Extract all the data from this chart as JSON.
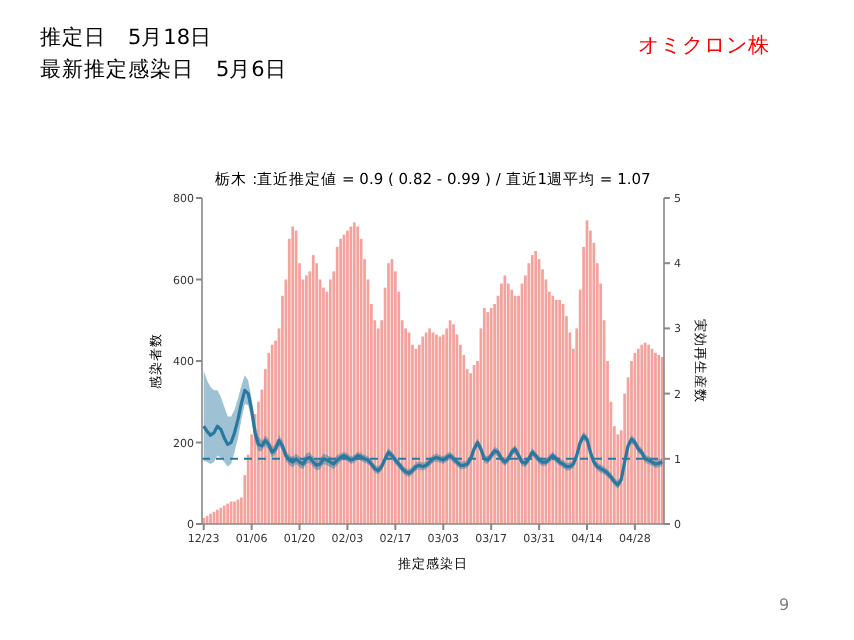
{
  "chart_data": {
    "type": "bar",
    "title": "栃木 :直近推定値 = 0.9 ( 0.82 - 0.99 ) / 直近1週平均 = 1.07",
    "xlabel": "推定感染日",
    "ylabel": "感染者数",
    "y2label": "実効再生産数",
    "annotations": [
      "推定日　5月18日",
      "最新推定感染日　5月6日",
      "オミクロン株",
      "9"
    ],
    "categories": [
      "12/23",
      null,
      null,
      null,
      null,
      null,
      null,
      null,
      null,
      null,
      null,
      null,
      null,
      null,
      "01/06",
      null,
      null,
      null,
      null,
      null,
      null,
      null,
      null,
      null,
      null,
      null,
      null,
      null,
      "01/20",
      null,
      null,
      null,
      null,
      null,
      null,
      null,
      null,
      null,
      null,
      null,
      null,
      null,
      "02/03",
      null,
      null,
      null,
      null,
      null,
      null,
      null,
      null,
      null,
      null,
      null,
      null,
      null,
      "02/17",
      null,
      null,
      null,
      null,
      null,
      null,
      null,
      null,
      null,
      null,
      null,
      null,
      null,
      "03/03",
      null,
      null,
      null,
      null,
      null,
      null,
      null,
      null,
      null,
      null,
      null,
      null,
      null,
      "03/17",
      null,
      null,
      null,
      null,
      null,
      null,
      null,
      null,
      null,
      null,
      null,
      null,
      null,
      "03/31",
      null,
      null,
      null,
      null,
      null,
      null,
      null,
      null,
      null,
      null,
      null,
      null,
      null,
      "04/14",
      null,
      null,
      null,
      null,
      null,
      null,
      null,
      null,
      null,
      null,
      null,
      null,
      null,
      "04/28",
      null,
      null,
      null,
      null,
      null,
      null,
      null,
      null
    ],
    "series": [
      {
        "color": "#f4a29c",
        "values": [
          15,
          20,
          25,
          30,
          35,
          40,
          45,
          50,
          55,
          55,
          60,
          65,
          120,
          170,
          220,
          270,
          300,
          330,
          380,
          420,
          440,
          450,
          480,
          560,
          600,
          700,
          730,
          720,
          640,
          600,
          610,
          620,
          660,
          640,
          600,
          580,
          570,
          600,
          620,
          680,
          700,
          710,
          720,
          730,
          740,
          730,
          700,
          650,
          600,
          540,
          500,
          480,
          500,
          580,
          640,
          650,
          620,
          570,
          500,
          480,
          470,
          440,
          430,
          440,
          460,
          470,
          480,
          470,
          465,
          460,
          465,
          480,
          500,
          490,
          465,
          440,
          415,
          380,
          370,
          390,
          400,
          480,
          530,
          520,
          530,
          540,
          560,
          590,
          610,
          590,
          575,
          560,
          560,
          590,
          610,
          640,
          660,
          670,
          650,
          625,
          600,
          570,
          560,
          550,
          550,
          540,
          510,
          470,
          430,
          480,
          575,
          680,
          745,
          720,
          690,
          640,
          590,
          500,
          400,
          300,
          240,
          220,
          230,
          320,
          360,
          400,
          420,
          430,
          440,
          445,
          440,
          430,
          420,
          415,
          410
        ]
      },
      {
        "type": "line",
        "axis": "y2",
        "color": "#2878a0",
        "values": [
          1.5,
          1.42,
          1.36,
          1.4,
          1.5,
          1.45,
          1.32,
          1.22,
          1.25,
          1.4,
          1.6,
          1.85,
          2.05,
          2.0,
          1.75,
          1.4,
          1.22,
          1.2,
          1.28,
          1.22,
          1.1,
          1.15,
          1.28,
          1.2,
          1.05,
          0.98,
          0.95,
          1.0,
          0.95,
          0.92,
          1.0,
          1.02,
          0.95,
          0.9,
          0.92,
          1.0,
          0.98,
          0.95,
          0.92,
          0.98,
          1.02,
          1.05,
          1.02,
          0.98,
          1.0,
          1.05,
          1.03,
          1.0,
          0.98,
          0.92,
          0.85,
          0.82,
          0.88,
          1.0,
          1.1,
          1.05,
          0.98,
          0.92,
          0.85,
          0.8,
          0.78,
          0.82,
          0.88,
          0.9,
          0.88,
          0.9,
          0.95,
          1.0,
          1.02,
          1.0,
          0.98,
          1.02,
          1.05,
          1.0,
          0.95,
          0.9,
          0.9,
          0.92,
          1.0,
          1.15,
          1.25,
          1.15,
          1.0,
          0.98,
          1.05,
          1.12,
          1.1,
          1.0,
          0.95,
          1.0,
          1.1,
          1.15,
          1.05,
          0.95,
          0.93,
          1.0,
          1.1,
          1.05,
          0.98,
          0.95,
          0.95,
          1.0,
          1.05,
          1.0,
          0.95,
          0.92,
          0.88,
          0.88,
          0.92,
          1.05,
          1.25,
          1.35,
          1.3,
          1.1,
          0.95,
          0.88,
          0.85,
          0.82,
          0.78,
          0.72,
          0.65,
          0.6,
          0.68,
          0.95,
          1.2,
          1.3,
          1.25,
          1.15,
          1.1,
          1.0,
          0.98,
          0.95,
          0.92,
          0.93,
          0.95
        ],
        "lower": [
          0.97,
          0.95,
          0.92,
          0.95,
          1.05,
          1.02,
          0.95,
          0.88,
          0.92,
          1.1,
          1.32,
          1.6,
          1.84,
          1.82,
          1.6,
          1.27,
          1.12,
          1.12,
          1.2,
          1.14,
          1.02,
          1.07,
          1.2,
          1.12,
          0.97,
          0.9,
          0.87,
          0.92,
          0.87,
          0.84,
          0.92,
          0.94,
          0.87,
          0.82,
          0.84,
          0.92,
          0.9,
          0.87,
          0.84,
          0.9,
          0.96,
          0.99,
          0.96,
          0.92,
          0.94,
          0.99,
          0.97,
          0.94,
          0.92,
          0.86,
          0.79,
          0.76,
          0.82,
          0.94,
          1.04,
          0.99,
          0.92,
          0.86,
          0.79,
          0.74,
          0.72,
          0.76,
          0.82,
          0.84,
          0.82,
          0.84,
          0.89,
          0.94,
          0.96,
          0.94,
          0.92,
          0.96,
          0.99,
          0.94,
          0.89,
          0.84,
          0.84,
          0.86,
          0.94,
          1.09,
          1.19,
          1.09,
          0.94,
          0.92,
          0.99,
          1.06,
          1.04,
          0.94,
          0.89,
          0.94,
          1.04,
          1.09,
          0.99,
          0.89,
          0.87,
          0.94,
          1.04,
          0.99,
          0.92,
          0.89,
          0.89,
          0.94,
          0.99,
          0.94,
          0.89,
          0.86,
          0.82,
          0.82,
          0.86,
          0.99,
          1.19,
          1.29,
          1.24,
          1.04,
          0.89,
          0.82,
          0.79,
          0.76,
          0.72,
          0.66,
          0.59,
          0.54,
          0.62,
          0.89,
          1.14,
          1.24,
          1.19,
          1.09,
          1.04,
          0.94,
          0.92,
          0.89,
          0.86,
          0.87,
          0.89
        ],
        "upper": [
          2.35,
          2.2,
          2.1,
          2.05,
          2.05,
          1.95,
          1.8,
          1.65,
          1.65,
          1.75,
          1.92,
          2.12,
          2.28,
          2.2,
          1.92,
          1.55,
          1.34,
          1.28,
          1.36,
          1.3,
          1.18,
          1.23,
          1.36,
          1.28,
          1.13,
          1.06,
          1.03,
          1.08,
          1.03,
          1.0,
          1.08,
          1.1,
          1.03,
          0.98,
          1.0,
          1.08,
          1.06,
          1.03,
          1.0,
          1.06,
          1.08,
          1.11,
          1.08,
          1.04,
          1.06,
          1.11,
          1.09,
          1.06,
          1.04,
          0.98,
          0.91,
          0.88,
          0.94,
          1.06,
          1.16,
          1.11,
          1.04,
          0.98,
          0.91,
          0.86,
          0.84,
          0.88,
          0.94,
          0.96,
          0.94,
          0.96,
          1.01,
          1.06,
          1.08,
          1.06,
          1.04,
          1.08,
          1.11,
          1.06,
          1.01,
          0.96,
          0.96,
          0.98,
          1.06,
          1.21,
          1.31,
          1.21,
          1.06,
          1.04,
          1.11,
          1.18,
          1.16,
          1.06,
          1.01,
          1.06,
          1.16,
          1.21,
          1.11,
          1.01,
          0.99,
          1.06,
          1.16,
          1.11,
          1.04,
          1.01,
          1.01,
          1.06,
          1.11,
          1.06,
          1.01,
          0.98,
          0.94,
          0.94,
          0.98,
          1.11,
          1.31,
          1.41,
          1.36,
          1.16,
          1.01,
          0.94,
          0.91,
          0.88,
          0.84,
          0.78,
          0.71,
          0.66,
          0.74,
          1.01,
          1.26,
          1.36,
          1.31,
          1.21,
          1.16,
          1.06,
          1.04,
          1.01,
          0.98,
          0.99,
          1.01
        ]
      }
    ],
    "ylim": [
      0,
      800
    ],
    "yticks": [
      0,
      200,
      400,
      600,
      800
    ],
    "y2lim": [
      0,
      5
    ],
    "y2ticks": [
      0,
      1,
      2,
      3,
      4,
      5
    ],
    "ref_lines": [
      {
        "axis": "y2",
        "value": 1,
        "color": "#2878a0",
        "line_style": "dashed"
      }
    ],
    "grid": false
  }
}
